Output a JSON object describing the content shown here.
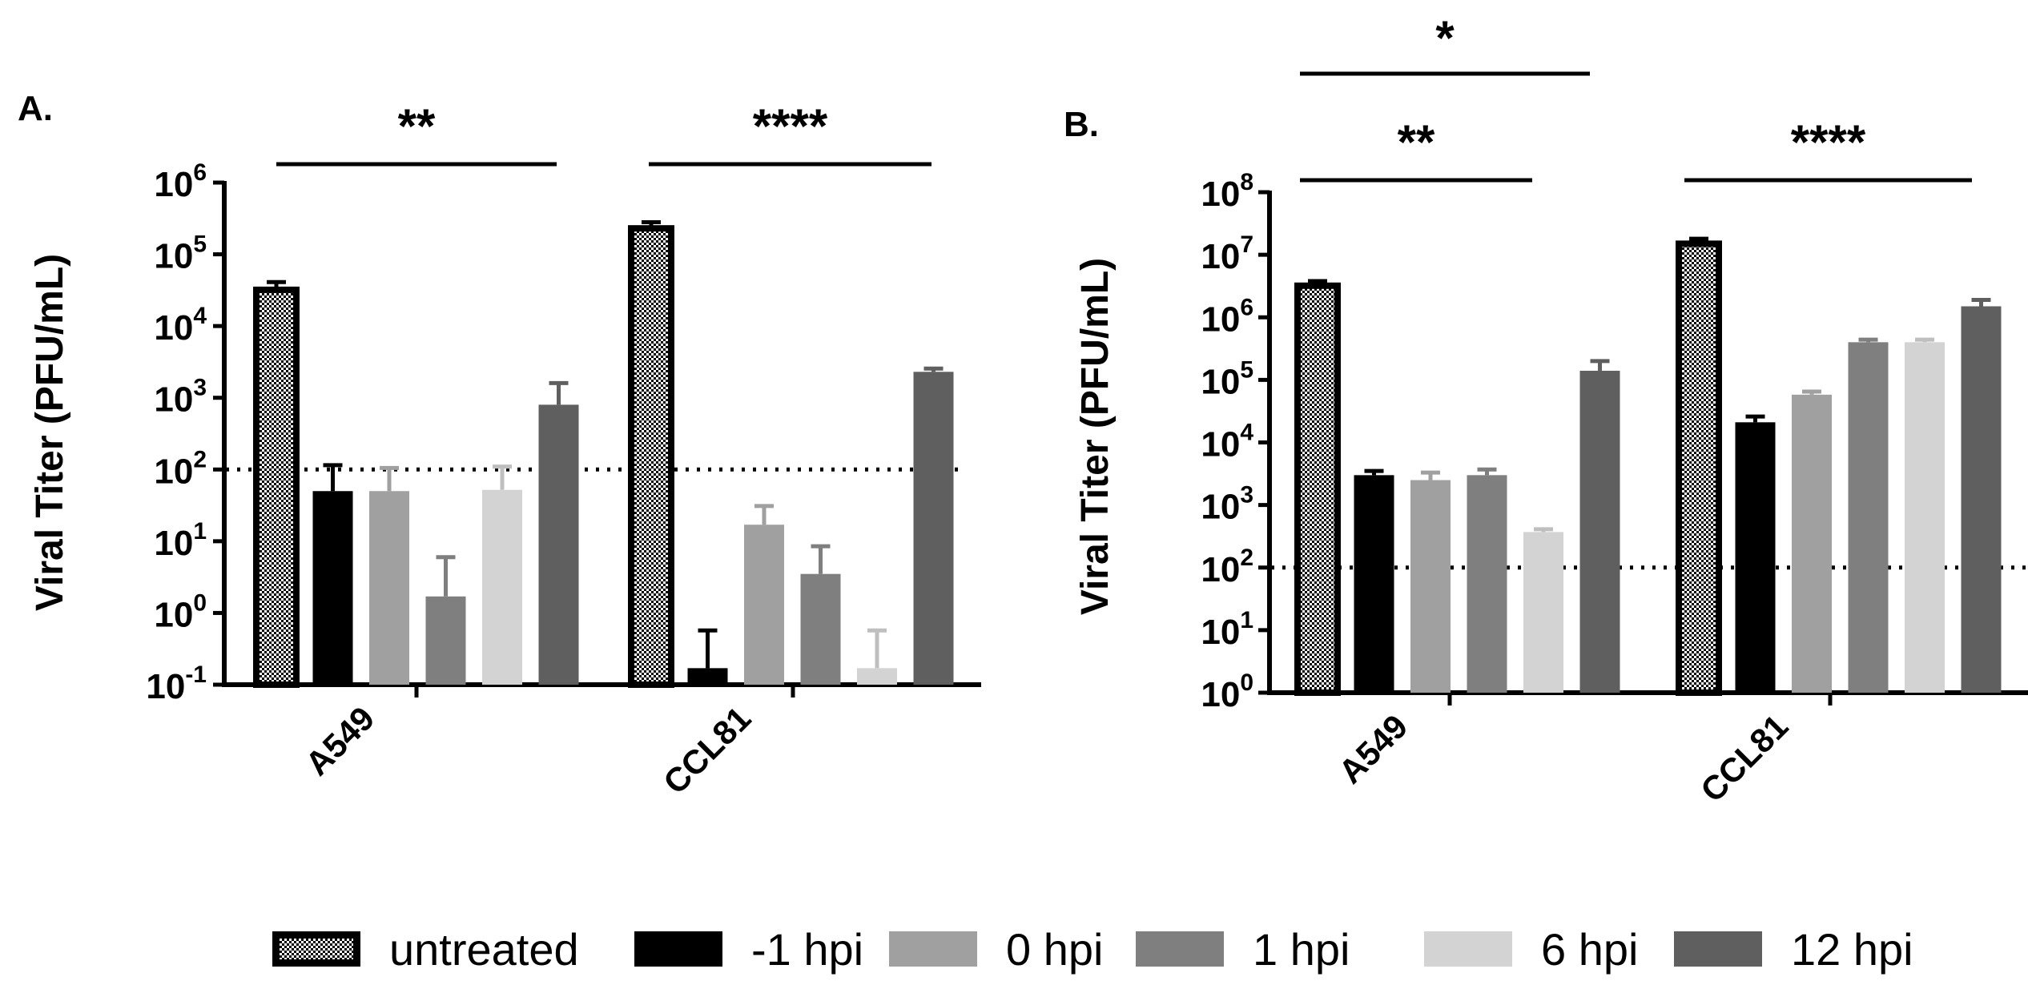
{
  "chart_data": [
    {
      "type": "bar",
      "panel_label": "A.",
      "ylabel": "Viral Titer (PFU/mL)",
      "yscale": "log10",
      "ylim_exp": [
        -1,
        6
      ],
      "y_ticks": [
        {
          "base": "10",
          "exp": "-1"
        },
        {
          "base": "10",
          "exp": "0"
        },
        {
          "base": "10",
          "exp": "1"
        },
        {
          "base": "10",
          "exp": "2"
        },
        {
          "base": "10",
          "exp": "3"
        },
        {
          "base": "10",
          "exp": "4"
        },
        {
          "base": "10",
          "exp": "5"
        },
        {
          "base": "10",
          "exp": "6"
        }
      ],
      "categories": [
        "A549",
        "CCL81"
      ],
      "detection_limit": 100,
      "series": [
        {
          "name": "untreated",
          "values": [
            32000,
            230000
          ],
          "errors": [
            9000,
            50000
          ]
        },
        {
          "name": "-1 hpi",
          "values": [
            50,
            0.17
          ],
          "errors": [
            65,
            0.4
          ]
        },
        {
          "name": "0 hpi",
          "values": [
            50,
            17
          ],
          "errors": [
            55,
            14
          ]
        },
        {
          "name": "1 hpi",
          "values": [
            1.7,
            3.5
          ],
          "errors": [
            4.3,
            5
          ]
        },
        {
          "name": "6 hpi",
          "values": [
            52,
            0.17
          ],
          "errors": [
            58,
            0.4
          ]
        },
        {
          "name": "12 hpi",
          "values": [
            800,
            2300
          ],
          "errors": [
            800,
            250
          ]
        }
      ],
      "significance": [
        {
          "label": "**",
          "category": 0
        },
        {
          "label": "****",
          "category": 1
        }
      ]
    },
    {
      "type": "bar",
      "panel_label": "B.",
      "ylabel": "Viral Titer (PFU/mL)",
      "yscale": "log10",
      "ylim_exp": [
        0,
        8
      ],
      "y_ticks": [
        {
          "base": "10",
          "exp": "0"
        },
        {
          "base": "10",
          "exp": "1"
        },
        {
          "base": "10",
          "exp": "2"
        },
        {
          "base": "10",
          "exp": "3"
        },
        {
          "base": "10",
          "exp": "4"
        },
        {
          "base": "10",
          "exp": "5"
        },
        {
          "base": "10",
          "exp": "6"
        },
        {
          "base": "10",
          "exp": "7"
        },
        {
          "base": "10",
          "exp": "8"
        }
      ],
      "categories": [
        "A549",
        "CCL81"
      ],
      "detection_limit": 100,
      "series": [
        {
          "name": "untreated",
          "values": [
            3200000,
            15000000
          ],
          "errors": [
            600000,
            3000000
          ]
        },
        {
          "name": "-1 hpi",
          "values": [
            3000,
            21000
          ],
          "errors": [
            500,
            5000
          ]
        },
        {
          "name": "0 hpi",
          "values": [
            2500,
            58000
          ],
          "errors": [
            800,
            7000
          ]
        },
        {
          "name": "1 hpi",
          "values": [
            3000,
            400000
          ],
          "errors": [
            700,
            40000
          ]
        },
        {
          "name": "6 hpi",
          "values": [
            370,
            400000
          ],
          "errors": [
            40,
            40000
          ]
        },
        {
          "name": "12 hpi",
          "values": [
            140000,
            1500000
          ],
          "errors": [
            60000,
            400000
          ]
        }
      ],
      "significance": [
        {
          "label": "**",
          "category": 0
        },
        {
          "label": "*",
          "category": 0
        },
        {
          "label": "****",
          "category": 1
        }
      ]
    }
  ],
  "legend": [
    {
      "name": "untreated",
      "label": "untreated",
      "color": "#f2f2f2",
      "pattern": "checker"
    },
    {
      "name": "-1 hpi",
      "label": "-1 hpi",
      "color": "#000000"
    },
    {
      "name": "0 hpi",
      "label": "0 hpi",
      "color": "#a0a0a0"
    },
    {
      "name": "1 hpi",
      "label": "1 hpi",
      "color": "#7f7f7f"
    },
    {
      "name": "6 hpi",
      "label": "6 hpi",
      "color": "#d3d3d3"
    },
    {
      "name": "12 hpi",
      "label": "12 hpi",
      "color": "#5f5f5f"
    }
  ]
}
